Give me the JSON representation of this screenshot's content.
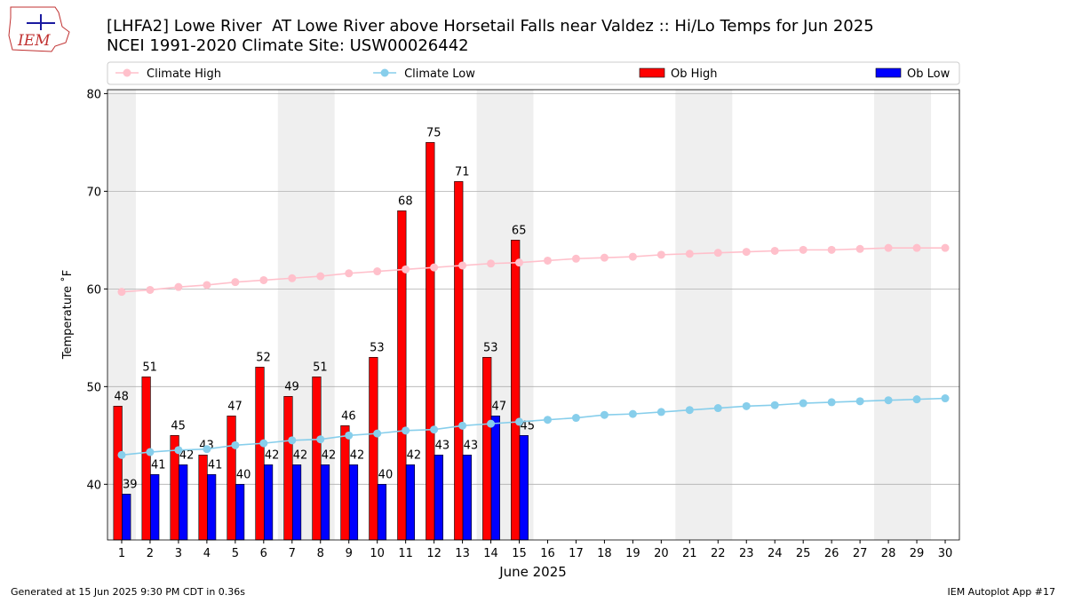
{
  "chart_data": {
    "type": "bar_line",
    "title": "[LHFA2] Lowe River  AT Lowe River above Horsetail Falls near Valdez :: Hi/Lo Temps for Jun 2025",
    "subtitle": "NCEI 1991-2020 Climate Site: USW00026442",
    "logo_text": "IEM",
    "xlabel": "June 2025",
    "ylabel": "Temperature ˚F",
    "x": [
      1,
      2,
      3,
      4,
      5,
      6,
      7,
      8,
      9,
      10,
      11,
      12,
      13,
      14,
      15,
      16,
      17,
      18,
      19,
      20,
      21,
      22,
      23,
      24,
      25,
      26,
      27,
      28,
      29,
      30
    ],
    "xlim": [
      0.5,
      30.5
    ],
    "xticks": [
      1,
      2,
      3,
      4,
      5,
      6,
      7,
      8,
      9,
      10,
      11,
      12,
      13,
      14,
      15,
      16,
      17,
      18,
      19,
      20,
      21,
      22,
      23,
      24,
      25,
      26,
      27,
      28,
      29,
      30
    ],
    "ylim": [
      34.3,
      80.4
    ],
    "yticks": [
      40,
      50,
      60,
      70,
      80
    ],
    "grid": true,
    "legend": "top",
    "shade_spans": [
      [
        0.5,
        1.5
      ],
      [
        6.5,
        8.5
      ],
      [
        13.5,
        15.5
      ],
      [
        20.5,
        22.5
      ],
      [
        27.5,
        29.5
      ]
    ],
    "series": [
      {
        "name": "Climate High",
        "kind": "line",
        "color": "#ffc0cb",
        "values": [
          59.7,
          59.9,
          60.2,
          60.4,
          60.7,
          60.9,
          61.1,
          61.3,
          61.6,
          61.8,
          62.0,
          62.2,
          62.4,
          62.6,
          62.7,
          62.9,
          63.1,
          63.2,
          63.3,
          63.5,
          63.6,
          63.7,
          63.8,
          63.9,
          64.0,
          64.0,
          64.1,
          64.2,
          64.2,
          64.2
        ]
      },
      {
        "name": "Climate Low",
        "kind": "line",
        "color": "#87ceeb",
        "values": [
          43.0,
          43.3,
          43.5,
          43.6,
          44.0,
          44.2,
          44.5,
          44.6,
          45.0,
          45.2,
          45.5,
          45.6,
          46.0,
          46.2,
          46.4,
          46.6,
          46.8,
          47.1,
          47.2,
          47.4,
          47.6,
          47.8,
          48.0,
          48.1,
          48.3,
          48.4,
          48.5,
          48.6,
          48.7,
          48.8
        ]
      },
      {
        "name": "Ob High",
        "kind": "bar",
        "color": "#ff0000",
        "values": [
          48,
          51,
          45,
          43,
          47,
          52,
          49,
          51,
          46,
          53,
          68,
          75,
          71,
          53,
          65,
          null,
          null,
          null,
          null,
          null,
          null,
          null,
          null,
          null,
          null,
          null,
          null,
          null,
          null,
          null
        ]
      },
      {
        "name": "Ob Low",
        "kind": "bar",
        "color": "#0000ff",
        "values": [
          39,
          41,
          42,
          41,
          40,
          42,
          42,
          42,
          42,
          40,
          42,
          43,
          43,
          47,
          45,
          null,
          null,
          null,
          null,
          null,
          null,
          null,
          null,
          null,
          null,
          null,
          null,
          null,
          null,
          null
        ]
      }
    ],
    "footer_left": "Generated at 15 Jun 2025 9:30 PM CDT in 0.36s",
    "footer_right": "IEM Autoplot App #17"
  }
}
